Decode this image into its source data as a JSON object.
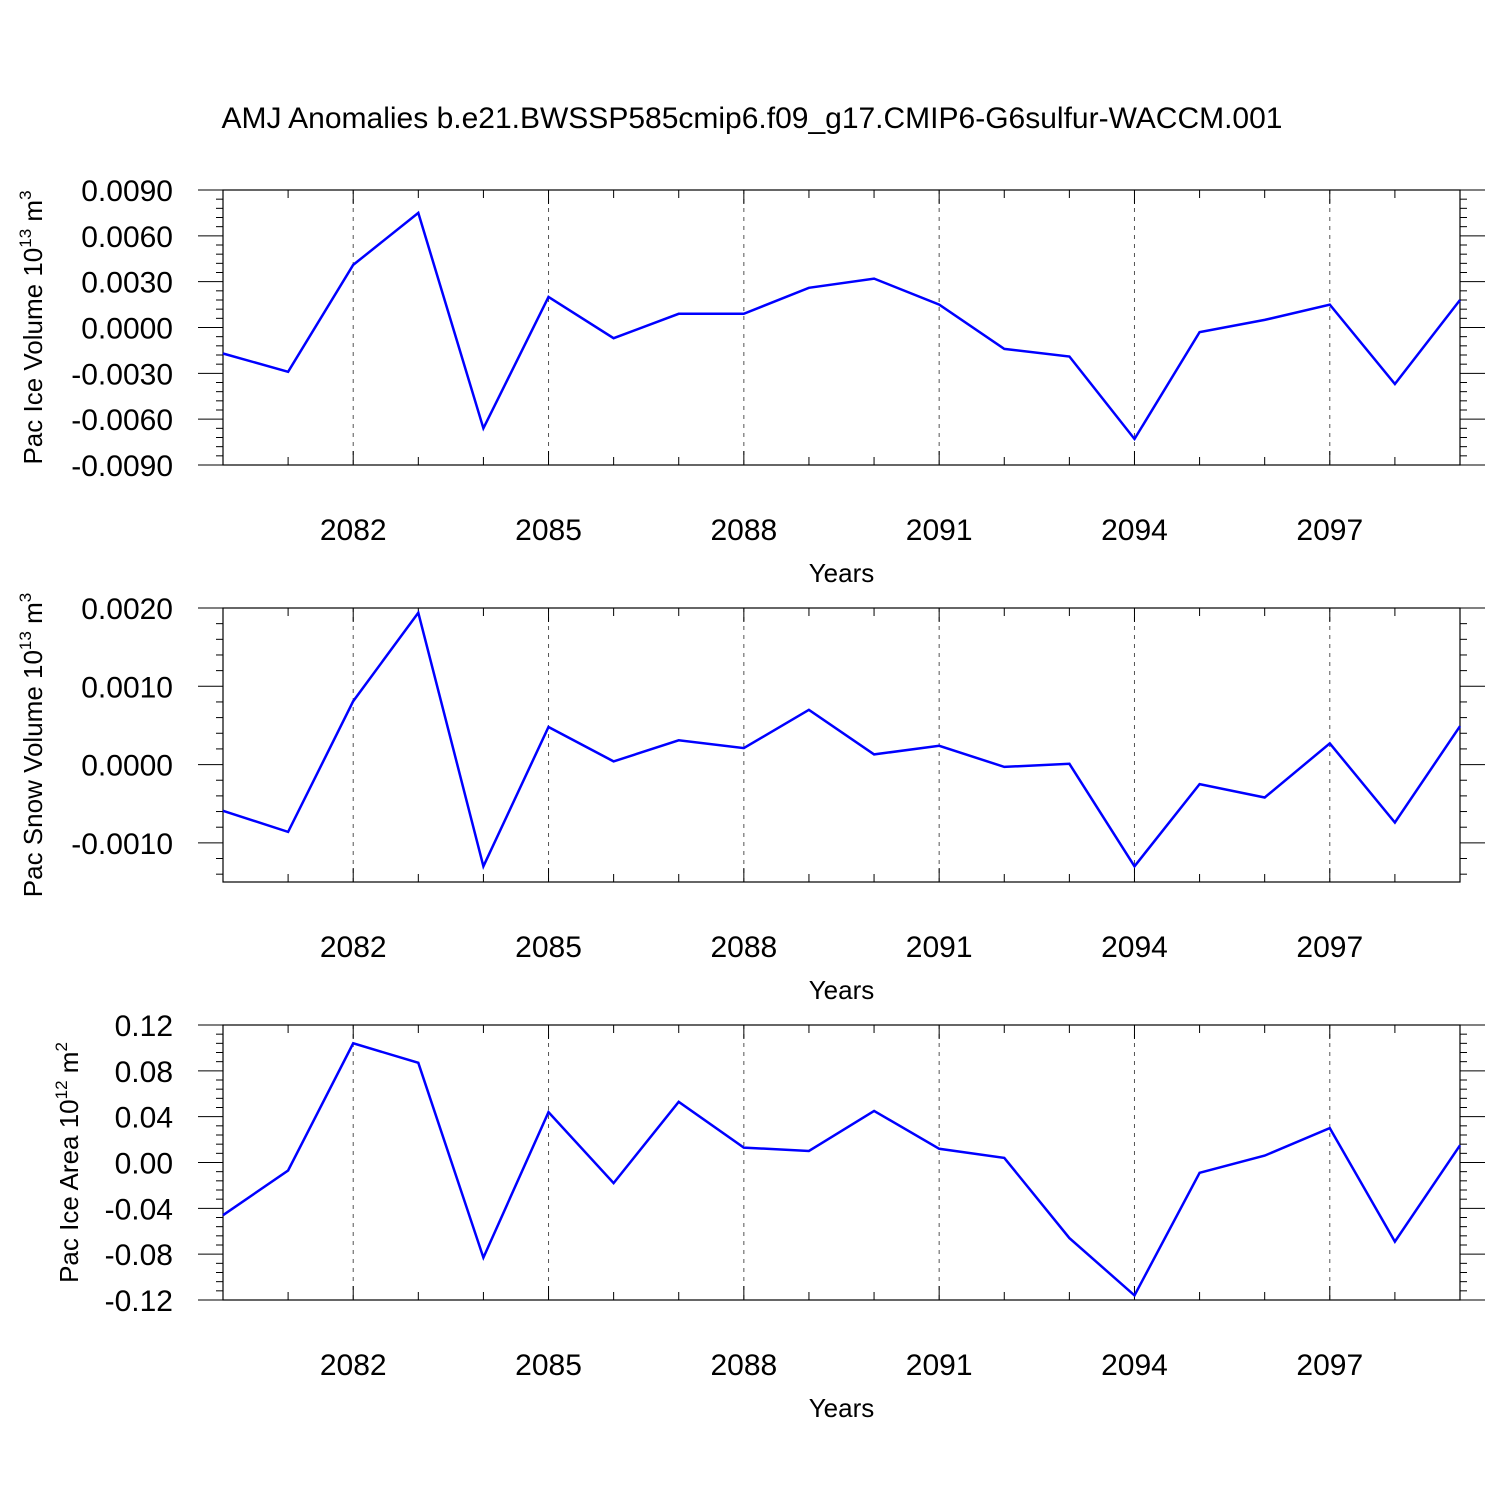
{
  "title": "AMJ Anomalies b.e21.BWSSP585cmip6.f09_g17.CMIP6-G6sulfur-WACCM.001",
  "colors": {
    "line": "#0000ff",
    "axis": "#000000",
    "grid": "#555555"
  },
  "chart_data": [
    {
      "type": "line",
      "ylabel": {
        "text": "Pac Ice Volume 10",
        "sup1": "13",
        "unit": " m",
        "sup2": "3"
      },
      "xlabel": "Years",
      "xlim": [
        2080,
        2099
      ],
      "ylim": [
        -0.009,
        0.009
      ],
      "yticks": [
        -0.009,
        -0.006,
        -0.003,
        0.0,
        0.003,
        0.006,
        0.009
      ],
      "ytick_labels": [
        "-0.0090",
        "-0.0060",
        "-0.0030",
        "0.0000",
        "0.0030",
        "0.0060",
        "0.0090"
      ],
      "xticks": [
        2082,
        2085,
        2088,
        2091,
        2094,
        2097
      ],
      "xtick_labels": [
        "2082",
        "2085",
        "2088",
        "2091",
        "2094",
        "2097"
      ],
      "grid": "vertical dashed at major x ticks",
      "series": [
        {
          "x": [
            2080,
            2081,
            2082,
            2083,
            2084,
            2085,
            2086,
            2087,
            2088,
            2089,
            2090,
            2091,
            2092,
            2093,
            2094,
            2095,
            2096,
            2097,
            2098,
            2099
          ],
          "values": [
            -0.0017,
            -0.0029,
            0.0041,
            0.0075,
            -0.0066,
            0.002,
            -0.0007,
            0.0009,
            0.0009,
            0.0026,
            0.0032,
            0.0015,
            -0.0014,
            -0.0019,
            -0.0073,
            -0.0003,
            0.0005,
            0.0015,
            -0.0037,
            0.0018
          ]
        }
      ]
    },
    {
      "type": "line",
      "ylabel": {
        "text": "Pac Snow Volume 10",
        "sup1": "13",
        "unit": " m",
        "sup2": "3"
      },
      "xlabel": "Years",
      "xlim": [
        2080,
        2099
      ],
      "ylim": [
        -0.0015,
        0.002
      ],
      "yticks": [
        -0.001,
        0.0,
        0.001,
        0.002
      ],
      "ytick_labels": [
        "-0.0010",
        "0.0000",
        "0.0010",
        "0.0020"
      ],
      "xticks": [
        2082,
        2085,
        2088,
        2091,
        2094,
        2097
      ],
      "xtick_labels": [
        "2082",
        "2085",
        "2088",
        "2091",
        "2094",
        "2097"
      ],
      "grid": "vertical dashed at major x ticks",
      "series": [
        {
          "x": [
            2080,
            2081,
            2082,
            2083,
            2084,
            2085,
            2086,
            2087,
            2088,
            2089,
            2090,
            2091,
            2092,
            2093,
            2094,
            2095,
            2096,
            2097,
            2098,
            2099
          ],
          "values": [
            -0.00059,
            -0.00086,
            0.00081,
            0.00194,
            -0.0013,
            0.00048,
            4e-05,
            0.00031,
            0.00021,
            0.0007,
            0.00013,
            0.00024,
            -3e-05,
            1e-05,
            -0.0013,
            -0.00025,
            -0.00042,
            0.00027,
            -0.00074,
            0.00049
          ]
        }
      ]
    },
    {
      "type": "line",
      "ylabel": {
        "text": "Pac Ice Area 10",
        "sup1": "12",
        "unit": " m",
        "sup2": "2"
      },
      "xlabel": "Years",
      "xlim": [
        2080,
        2099
      ],
      "ylim": [
        -0.12,
        0.12
      ],
      "yticks": [
        -0.12,
        -0.08,
        -0.04,
        0.0,
        0.04,
        0.08,
        0.12
      ],
      "ytick_labels": [
        "-0.12",
        "-0.08",
        "-0.04",
        "0.00",
        "0.04",
        "0.08",
        "0.12"
      ],
      "xticks": [
        2082,
        2085,
        2088,
        2091,
        2094,
        2097
      ],
      "xtick_labels": [
        "2082",
        "2085",
        "2088",
        "2091",
        "2094",
        "2097"
      ],
      "grid": "vertical dashed at major x ticks",
      "series": [
        {
          "x": [
            2080,
            2081,
            2082,
            2083,
            2084,
            2085,
            2086,
            2087,
            2088,
            2089,
            2090,
            2091,
            2092,
            2093,
            2094,
            2095,
            2096,
            2097,
            2098,
            2099
          ],
          "values": [
            -0.046,
            -0.007,
            0.104,
            0.087,
            -0.083,
            0.044,
            -0.018,
            0.053,
            0.013,
            0.01,
            0.045,
            0.012,
            0.004,
            -0.066,
            -0.116,
            -0.009,
            0.006,
            0.03,
            -0.069,
            0.015
          ]
        }
      ]
    }
  ]
}
